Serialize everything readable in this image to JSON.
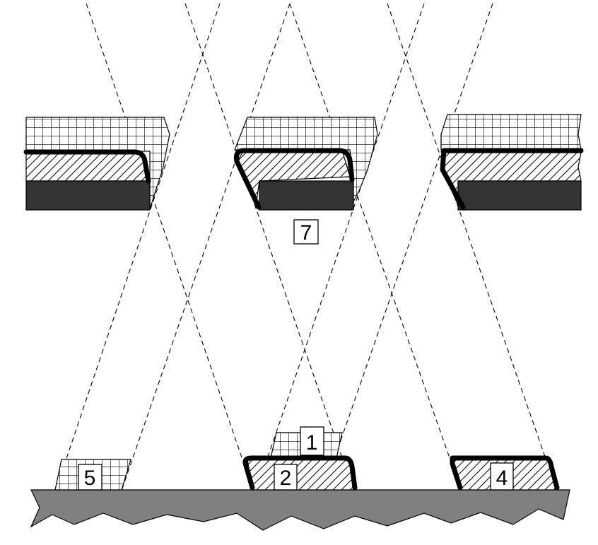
{
  "labels": {
    "l7": "7",
    "l1": "1",
    "l2": "2",
    "l4": "4",
    "l5": "5"
  },
  "colors": {
    "dark_block": "#333333",
    "ground": "#808080",
    "line": "#000000",
    "background": "#ffffff"
  }
}
